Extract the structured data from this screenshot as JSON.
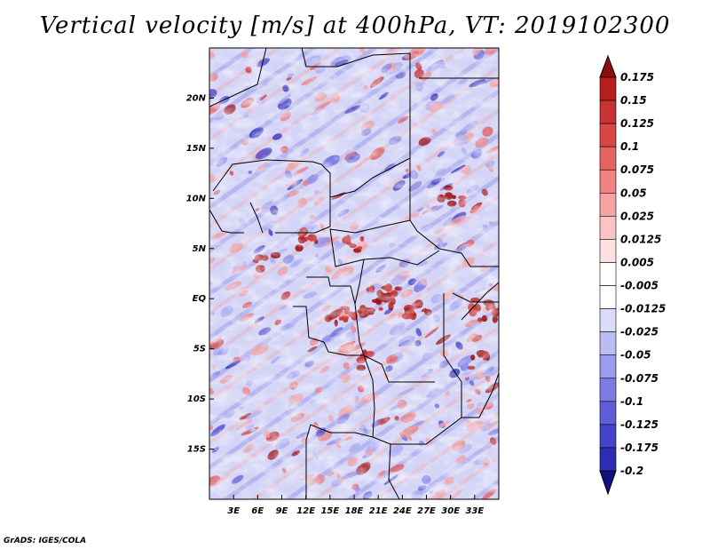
{
  "title": "Vertical velocity [m/s] at 400hPa, VT: 2019102300",
  "credit": "GrADS: IGES/COLA",
  "map": {
    "lon_range": [
      0,
      36
    ],
    "lat_range": [
      -20,
      25
    ],
    "lat_ticks": [
      {
        "value": 20,
        "label": "20N"
      },
      {
        "value": 15,
        "label": "15N"
      },
      {
        "value": 10,
        "label": "10N"
      },
      {
        "value": 5,
        "label": "5N"
      },
      {
        "value": 0,
        "label": "EQ"
      },
      {
        "value": -5,
        "label": "5S"
      },
      {
        "value": -10,
        "label": "10S"
      },
      {
        "value": -15,
        "label": "15S"
      }
    ],
    "lon_ticks": [
      {
        "value": 3,
        "label": "3E"
      },
      {
        "value": 6,
        "label": "6E"
      },
      {
        "value": 9,
        "label": "9E"
      },
      {
        "value": 12,
        "label": "12E"
      },
      {
        "value": 15,
        "label": "15E"
      },
      {
        "value": 18,
        "label": "18E"
      },
      {
        "value": 21,
        "label": "21E"
      },
      {
        "value": 24,
        "label": "24E"
      },
      {
        "value": 27,
        "label": "27E"
      },
      {
        "value": 30,
        "label": "30E"
      },
      {
        "value": 33,
        "label": "33E"
      }
    ]
  },
  "colorbar": {
    "levels": [
      {
        "label": "0.175",
        "color": "#a01414"
      },
      {
        "label": "0.15",
        "color": "#b41e1e"
      },
      {
        "label": "0.125",
        "color": "#c83232"
      },
      {
        "label": "0.1",
        "color": "#d84646"
      },
      {
        "label": "0.075",
        "color": "#e46464"
      },
      {
        "label": "0.05",
        "color": "#ee8484"
      },
      {
        "label": "0.025",
        "color": "#f5a3a3"
      },
      {
        "label": "0.0125",
        "color": "#fac4c4"
      },
      {
        "label": "0.005",
        "color": "#fde2e2"
      },
      {
        "label": "-0.005",
        "color": "#ffffff"
      },
      {
        "label": "-0.0125",
        "color": "#dcdcfa"
      },
      {
        "label": "-0.025",
        "color": "#bcbcf5"
      },
      {
        "label": "-0.05",
        "color": "#9c9cee"
      },
      {
        "label": "-0.075",
        "color": "#7c7ce4"
      },
      {
        "label": "-0.1",
        "color": "#5e5ed8"
      },
      {
        "label": "-0.125",
        "color": "#4444c8"
      },
      {
        "label": "-0.175",
        "color": "#2c2cb4"
      },
      {
        "label": "-0.2",
        "color": "#1a1a9c"
      }
    ],
    "top_color": "#8c0f0f",
    "bottom_color": "#101080"
  }
}
